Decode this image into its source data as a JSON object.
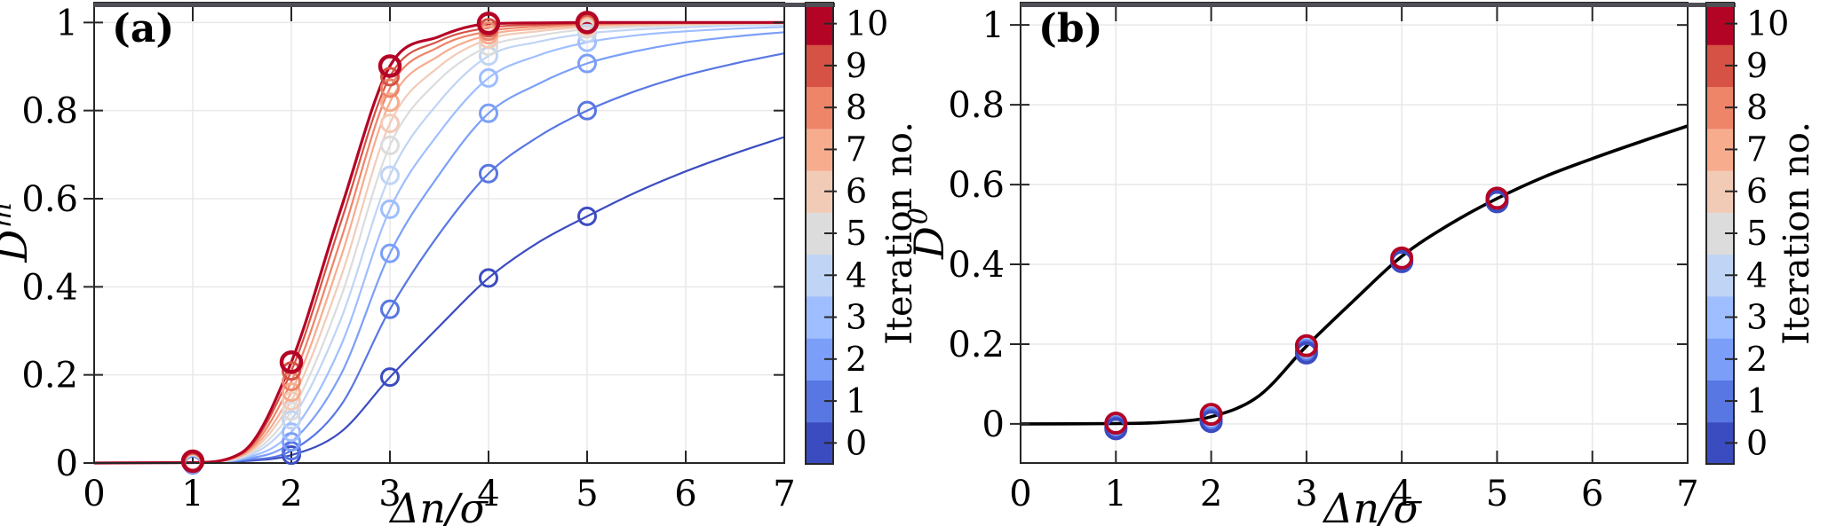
{
  "figure": {
    "background": "#ffffff",
    "axis_color": "#262626",
    "grid_color": "#e8e8e8",
    "top_bar_color": "#4e4e54"
  },
  "colormap": {
    "label": "Iteration no.",
    "values": [
      0,
      1,
      2,
      3,
      4,
      5,
      6,
      7,
      8,
      9,
      10
    ],
    "colors": [
      "#3b4cc0",
      "#5977e3",
      "#7b9ff9",
      "#9ebeff",
      "#c0d4f5",
      "#dcdcdc",
      "#f2cbb7",
      "#f7ac8e",
      "#ee8468",
      "#d65244",
      "#b40426"
    ]
  },
  "chart_data": [
    {
      "id": "a",
      "type": "line+scatter",
      "panel_label": "(a)",
      "xlabel": "Δn/σ",
      "ylabel_base": "D",
      "ylabel_sup": "m",
      "xlim": [
        0,
        7
      ],
      "ylim": [
        0,
        1.045
      ],
      "grid": true,
      "xticks": [
        0,
        1,
        2,
        3,
        4,
        5,
        6,
        7
      ],
      "xtick_labels": [
        "0",
        "1",
        "2",
        "3",
        "4",
        "5",
        "6",
        "7"
      ],
      "yticks": [
        0,
        0.2,
        0.4,
        0.6,
        0.8,
        1
      ],
      "ytick_labels": [
        "0",
        "0.2",
        "0.4",
        "0.6",
        "0.8",
        "1"
      ],
      "curve_x": [
        0,
        1,
        1.5,
        2,
        2.5,
        3,
        3.5,
        4,
        4.5,
        5,
        5.5,
        6,
        6.5,
        7
      ],
      "marker_x": [
        1,
        2,
        3,
        4,
        5
      ],
      "series": [
        {
          "name": "iteration-0",
          "iteration": 0,
          "color": "#3b4cc0",
          "curve_y": [
            0,
            0.001,
            0.004,
            0.018,
            0.07,
            0.195,
            0.31,
            0.42,
            0.5,
            0.56,
            0.615,
            0.662,
            0.703,
            0.74
          ],
          "marker_y": [
            -0.004,
            0.018,
            0.195,
            0.42,
            0.56
          ]
        },
        {
          "name": "iteration-1",
          "iteration": 1,
          "color": "#5977e3",
          "curve_y": [
            0,
            0.001,
            0.006,
            0.028,
            0.13,
            0.349,
            0.52,
            0.657,
            0.74,
            0.8,
            0.845,
            0.88,
            0.907,
            0.93
          ],
          "marker_y": [
            -0.0032,
            0.028,
            0.349,
            0.657,
            0.8
          ]
        },
        {
          "name": "iteration-2",
          "iteration": 2,
          "color": "#7b9ff9",
          "curve_y": [
            0,
            0.001,
            0.008,
            0.048,
            0.2,
            0.476,
            0.655,
            0.794,
            0.86,
            0.907,
            0.935,
            0.955,
            0.968,
            0.978
          ],
          "marker_y": [
            -0.0024,
            0.048,
            0.476,
            0.794,
            0.907
          ]
        },
        {
          "name": "iteration-3",
          "iteration": 3,
          "color": "#9ebeff",
          "curve_y": [
            0,
            0.001,
            0.01,
            0.07,
            0.265,
            0.576,
            0.75,
            0.874,
            0.925,
            0.955,
            0.971,
            0.98,
            0.986,
            0.99
          ],
          "marker_y": [
            -0.0016,
            0.07,
            0.576,
            0.874,
            0.955
          ]
        },
        {
          "name": "iteration-4",
          "iteration": 4,
          "color": "#c0d4f5",
          "curve_y": [
            0,
            0.001,
            0.012,
            0.098,
            0.325,
            0.653,
            0.82,
            0.924,
            0.956,
            0.975,
            0.984,
            0.989,
            0.993,
            0.995
          ],
          "marker_y": [
            -0.0008,
            0.098,
            0.653,
            0.924,
            0.975
          ]
        },
        {
          "name": "iteration-5",
          "iteration": 5,
          "color": "#dcdcdc",
          "curve_y": [
            0,
            0.001,
            0.014,
            0.118,
            0.375,
            0.721,
            0.87,
            0.946,
            0.97,
            0.985,
            0.99,
            0.994,
            0.996,
            0.997
          ],
          "marker_y": [
            0,
            0.118,
            0.721,
            0.946,
            0.985
          ]
        },
        {
          "name": "iteration-6",
          "iteration": 6,
          "color": "#f2cbb7",
          "curve_y": [
            0,
            0.001,
            0.016,
            0.141,
            0.42,
            0.771,
            0.9,
            0.962,
            0.98,
            0.99,
            0.994,
            0.996,
            0.997,
            0.998
          ],
          "marker_y": [
            0.0008,
            0.141,
            0.771,
            0.962,
            0.99
          ]
        },
        {
          "name": "iteration-7",
          "iteration": 7,
          "color": "#f7ac8e",
          "curve_y": [
            0,
            0.001,
            0.018,
            0.161,
            0.465,
            0.819,
            0.925,
            0.972,
            0.986,
            0.994,
            0.996,
            0.997,
            0.998,
            0.999
          ],
          "marker_y": [
            0.0016,
            0.161,
            0.819,
            0.972,
            0.994
          ]
        },
        {
          "name": "iteration-8",
          "iteration": 8,
          "color": "#ee8468",
          "curve_y": [
            0,
            0.001,
            0.02,
            0.185,
            0.505,
            0.851,
            0.945,
            0.98,
            0.991,
            0.996,
            0.998,
            0.999,
            0.999,
            1
          ],
          "marker_y": [
            0.0024,
            0.185,
            0.851,
            0.98,
            0.996
          ]
        },
        {
          "name": "iteration-9",
          "iteration": 9,
          "color": "#d65244",
          "curve_y": [
            0,
            0.001,
            0.022,
            0.209,
            0.545,
            0.877,
            0.958,
            0.988,
            0.995,
            0.998,
            0.999,
            1,
            1,
            1
          ],
          "marker_y": [
            0.0032,
            0.209,
            0.877,
            0.988,
            0.998
          ]
        },
        {
          "name": "iteration-10",
          "iteration": 10,
          "color": "#b40426",
          "line_width": 3.2,
          "marker_r": 11,
          "marker_stroke": 4.5,
          "curve_y": [
            0,
            0.001,
            0.024,
            0.229,
            0.575,
            0.901,
            0.968,
            0.997,
            0.999,
            1,
            1,
            1,
            1,
            1
          ],
          "marker_y": [
            0.004,
            0.229,
            0.901,
            0.998,
            1
          ]
        }
      ]
    },
    {
      "id": "b",
      "type": "line+scatter",
      "panel_label": "(b)",
      "xlabel": "Δn/σ",
      "ylabel_base": "D",
      "ylabel_sup": "0",
      "xlim": [
        0,
        7
      ],
      "ylim": [
        -0.098,
        1.056
      ],
      "grid": true,
      "xticks": [
        0,
        1,
        2,
        3,
        4,
        5,
        6,
        7
      ],
      "xtick_labels": [
        "0",
        "1",
        "2",
        "3",
        "4",
        "5",
        "6",
        "7"
      ],
      "yticks": [
        0,
        0.2,
        0.4,
        0.6,
        0.8,
        1
      ],
      "ytick_labels": [
        "0",
        "0.2",
        "0.4",
        "0.6",
        "0.8",
        "1"
      ],
      "curve_x": [
        0,
        1,
        1.5,
        2,
        2.5,
        3,
        3.5,
        4,
        4.5,
        5,
        5.5,
        6,
        6.5,
        7
      ],
      "marker_x": [
        1,
        2,
        3,
        4,
        5
      ],
      "curve": {
        "name": "model-fit",
        "color": "#000000",
        "line_width": 3.6,
        "y": [
          0,
          0.001,
          0.004,
          0.018,
          0.07,
          0.195,
          0.31,
          0.42,
          0.5,
          0.565,
          0.62,
          0.665,
          0.707,
          0.747
        ]
      },
      "marker_series": [
        {
          "name": "iteration-2",
          "iteration": 2,
          "color": "#7b9ff9",
          "marker_y": [
            -0.006,
            0.014,
            0.186,
            0.411,
            0.561
          ]
        },
        {
          "name": "iteration-1",
          "iteration": 1,
          "color": "#5977e3",
          "marker_y": [
            -0.009,
            0.01,
            0.182,
            0.409,
            0.559
          ]
        },
        {
          "name": "iteration-0",
          "iteration": 0,
          "color": "#3b4cc0",
          "marker_y": [
            -0.012,
            0.006,
            0.178,
            0.407,
            0.557
          ]
        },
        {
          "name": "iteration-10",
          "iteration": 10,
          "color": "#b40426",
          "marker_y": [
            0.002,
            0.024,
            0.196,
            0.416,
            0.566
          ]
        }
      ]
    },
    {
      "id": "colorbar-a",
      "type": "colorbar",
      "label": "Iteration no.",
      "tick_labels": [
        "0",
        "1",
        "2",
        "3",
        "4",
        "5",
        "6",
        "7",
        "8",
        "9",
        "10"
      ],
      "segment_colors_bottom_to_top": [
        "#3b4cc0",
        "#5977e3",
        "#7b9ff9",
        "#9ebeff",
        "#c0d4f5",
        "#dcdcdc",
        "#f2cbb7",
        "#f7ac8e",
        "#ee8468",
        "#d65244",
        "#b40426"
      ]
    },
    {
      "id": "colorbar-b",
      "type": "colorbar",
      "label": "Iteration no.",
      "tick_labels": [
        "0",
        "1",
        "2",
        "3",
        "4",
        "5",
        "6",
        "7",
        "8",
        "9",
        "10"
      ],
      "segment_colors_bottom_to_top": [
        "#3b4cc0",
        "#5977e3",
        "#7b9ff9",
        "#9ebeff",
        "#c0d4f5",
        "#dcdcdc",
        "#f2cbb7",
        "#f7ac8e",
        "#ee8468",
        "#d65244",
        "#b40426"
      ]
    }
  ]
}
